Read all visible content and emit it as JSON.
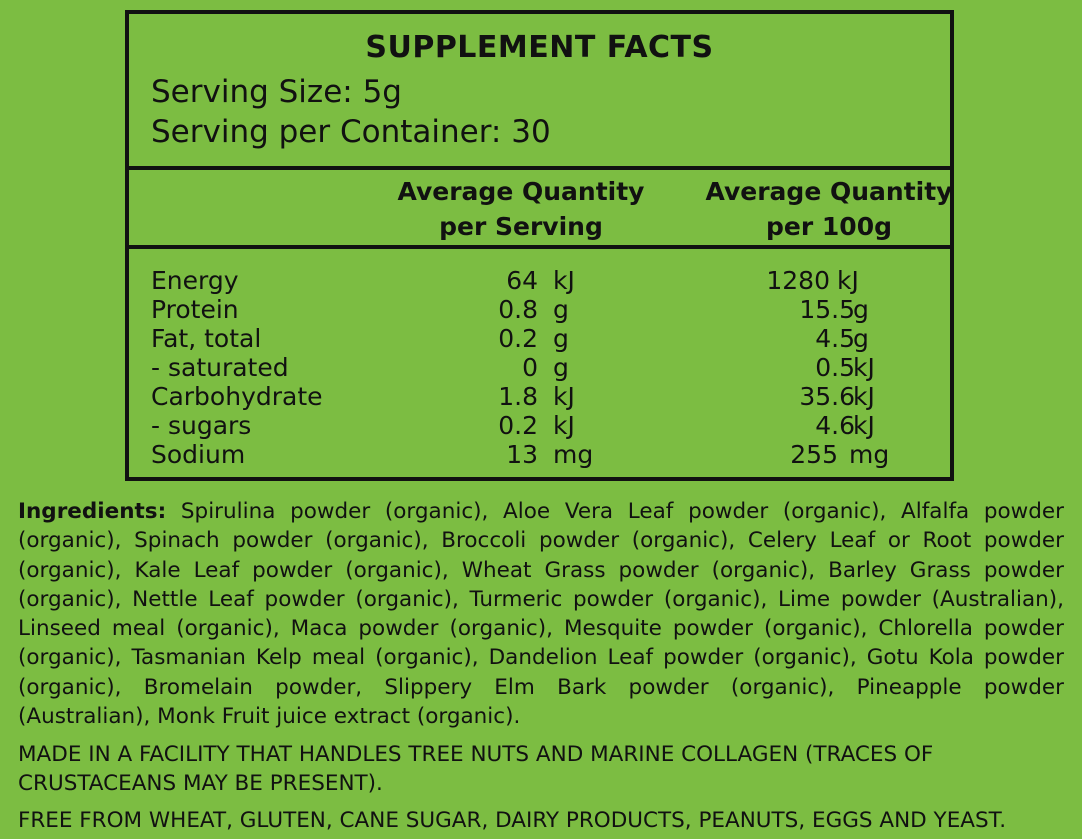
{
  "panel": {
    "title": "SUPPLEMENT FACTS",
    "serving_size": "Serving Size: 5g",
    "servings_per_container": "Serving per Container: 30",
    "col_serving_line1": "Average Quantity",
    "col_serving_line2": "per Serving",
    "col_100g_line1": "Average Quantity",
    "col_100g_line2": "per 100g",
    "rows": [
      {
        "name": "Energy",
        "serving_value": "64",
        "serving_unit": "kJ",
        "per100_value": "1280",
        "per100_unit": "kJ"
      },
      {
        "name": "Protein",
        "serving_value": "0.8",
        "serving_unit": "g",
        "per100_value": "15.5",
        "per100_unit": "g"
      },
      {
        "name": "Fat, total",
        "serving_value": "0.2",
        "serving_unit": "g",
        "per100_value": "4.5",
        "per100_unit": "g"
      },
      {
        "name": "- saturated",
        "serving_value": "0",
        "serving_unit": "g",
        "per100_value": "0.5",
        "per100_unit": "kJ"
      },
      {
        "name": "Carbohydrate",
        "serving_value": "1.8",
        "serving_unit": "kJ",
        "per100_value": "35.6",
        "per100_unit": "kJ"
      },
      {
        "name": "- sugars",
        "serving_value": "0.2",
        "serving_unit": "kJ",
        "per100_value": "4.6",
        "per100_unit": "kJ"
      },
      {
        "name": "Sodium",
        "serving_value": "13",
        "serving_unit": "mg",
        "per100_value": "255",
        "per100_unit": "mg"
      }
    ]
  },
  "ingredients": {
    "label": "Ingredients:",
    "text": "Spirulina powder (organic), Aloe Vera Leaf powder (organic), Alfalfa powder (organic), Spinach powder (organic), Broccoli powder (organic), Celery Leaf or Root powder (organic), Kale Leaf powder (organic), Wheat Grass powder (organic), Barley Grass powder (organic), Nettle Leaf powder (organic), Turmeric powder (organic), Lime powder (Australian), Linseed meal (organic), Maca powder (organic), Mesquite powder (organic), Chlorella powder (organic), Tasmanian Kelp meal (organic), Dandelion Leaf powder (organic), Gotu Kola powder (organic), Bromelain powder, Slippery Elm Bark powder (organic), Pineapple powder (Australian), Monk Fruit juice extract (organic)."
  },
  "allergen_note": "MADE IN A FACILITY THAT HANDLES TREE NUTS AND MARINE COLLAGEN (TRACES OF CRUSTACEANS MAY BE PRESENT).",
  "free_from_note": "FREE FROM WHEAT, GLUTEN, CANE SUGAR, DAIRY PRODUCTS, PEANUTS, EGGS AND YEAST.",
  "colors": {
    "background": "#7cbd42",
    "text": "#111111"
  }
}
